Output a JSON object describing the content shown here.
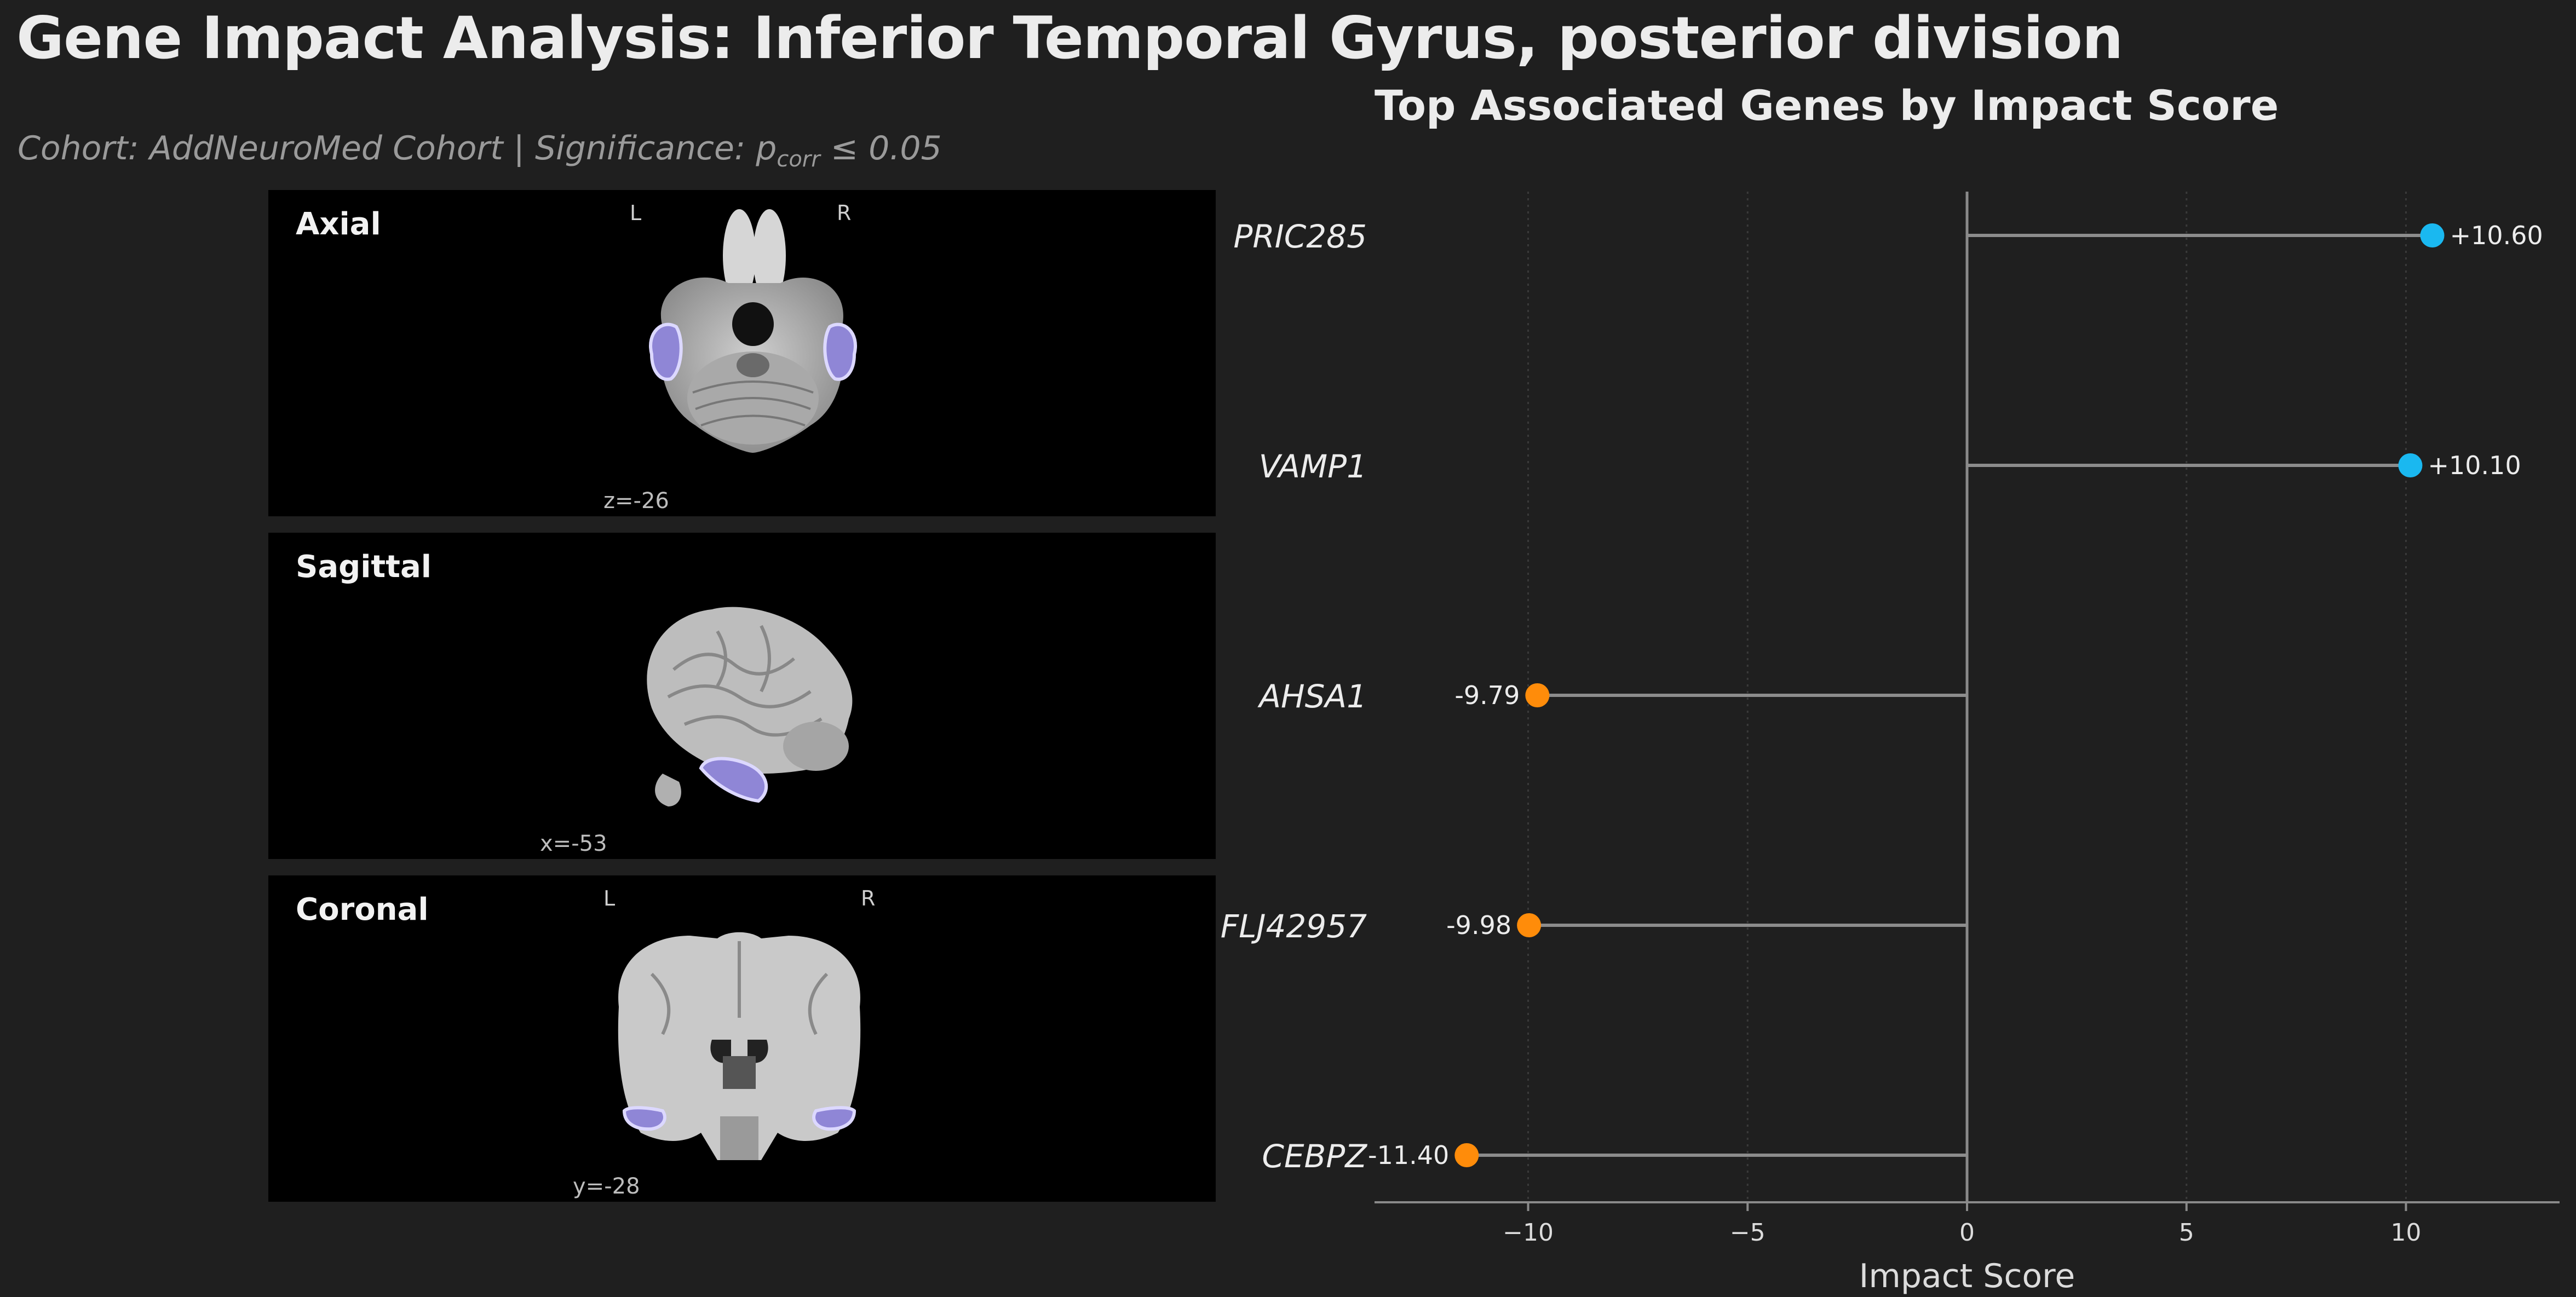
{
  "header": {
    "title": "Gene Impact Analysis: Inferior Temporal Gyrus, posterior division",
    "subtitle_prefix": "Cohort: AddNeuroMed Cohort | Significance: p",
    "subtitle_sub": "corr",
    "subtitle_suffix": " ≤ 0.05"
  },
  "panels": {
    "axial": {
      "label": "Axial",
      "left": "L",
      "right": "R",
      "coord": "z=-26"
    },
    "sagittal": {
      "label": "Sagittal",
      "coord": "x=-53"
    },
    "coronal": {
      "label": "Coronal",
      "left": "L",
      "right": "R",
      "coord": "y=-28"
    }
  },
  "colors": {
    "positive": "#1ab8f0",
    "negative": "#ff8c0a",
    "region": "#8f86d6",
    "background": "#1f1f1f"
  },
  "chart_data": {
    "type": "lollipop",
    "title": "Top Associated Genes by Impact Score",
    "xlabel": "Impact Score",
    "xlim": [
      -13.5,
      13.5
    ],
    "xticks": [
      -10,
      -5,
      0,
      5,
      10
    ],
    "xtick_labels": [
      "−10",
      "−5",
      "0",
      "5",
      "10"
    ],
    "grid": "vertical dotted",
    "categories": [
      "PRIC285",
      "VAMP1",
      "AHSA1",
      "FLJ42957",
      "CEBPZ"
    ],
    "values": [
      10.6,
      10.1,
      -9.79,
      -9.98,
      -11.4
    ],
    "value_labels": [
      "+10.60",
      "+10.10",
      "-9.79",
      "-9.98",
      "-11.40"
    ]
  }
}
